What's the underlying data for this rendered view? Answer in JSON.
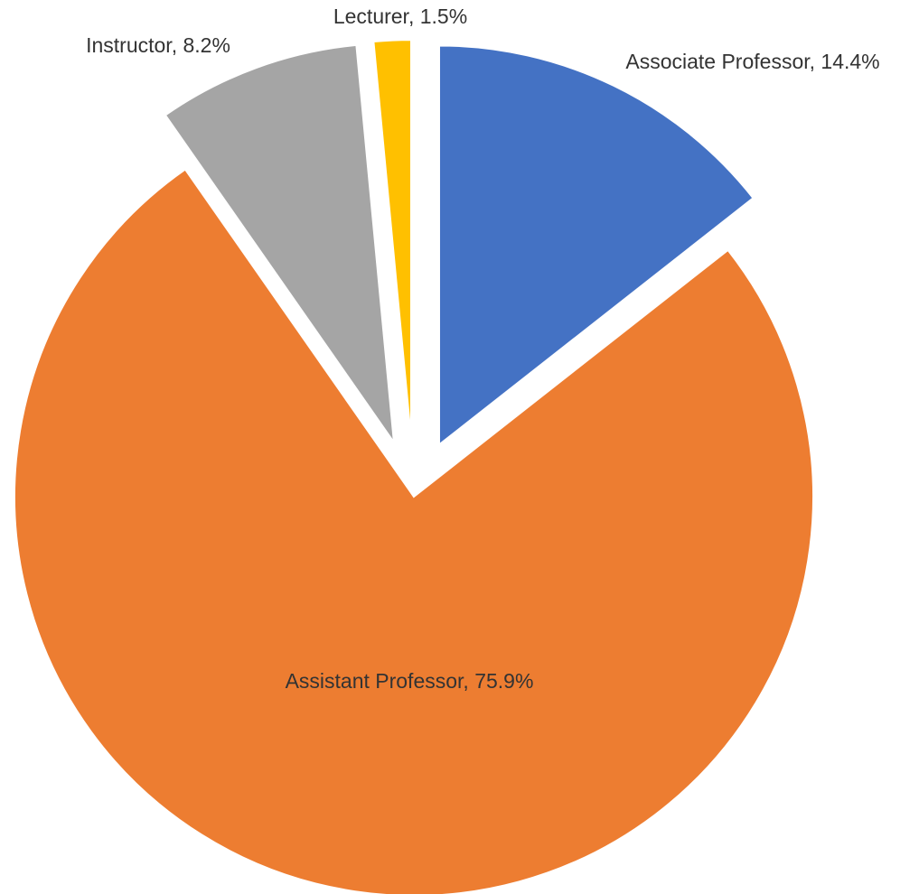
{
  "chart_data": {
    "type": "pie",
    "values": [
      14.4,
      75.9,
      8.2,
      1.5
    ],
    "value_labels": [
      "Associate Professor, 14.4%",
      "Assistant Professor, 75.9%",
      "Instructor, 8.2%",
      "Lecturer, 1.5%"
    ],
    "colors": [
      "#4472c4",
      "#ed7d31",
      "#a5a5a5",
      "#ffc000"
    ]
  }
}
